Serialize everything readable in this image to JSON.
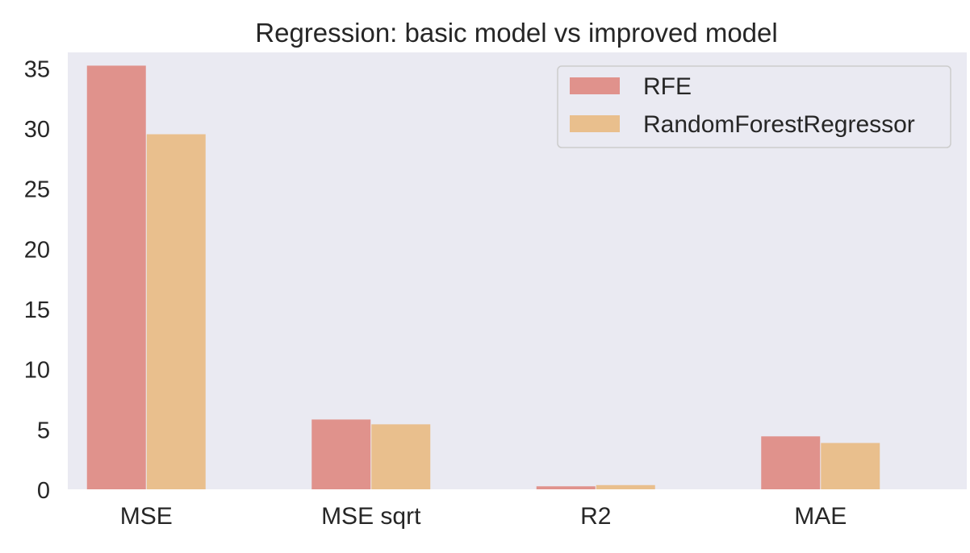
{
  "chart_data": {
    "type": "bar",
    "title": "Regression: basic model vs improved model",
    "xlabel": "",
    "ylabel": "",
    "categories": [
      "MSE",
      "MSE sqrt",
      "R2",
      "MAE"
    ],
    "series": [
      {
        "name": "RFE",
        "values": [
          35.2,
          5.8,
          0.25,
          4.4
        ],
        "color": "#e0928c"
      },
      {
        "name": "RandomForestRegressor",
        "values": [
          29.5,
          5.4,
          0.35,
          3.85
        ],
        "color": "#e9bf8d"
      }
    ],
    "ylim": [
      0,
      36.3
    ],
    "yticks": [
      0,
      5,
      10,
      15,
      20,
      25,
      30,
      35
    ],
    "grid": false,
    "legend_position": "upper right",
    "plot_background": "#eaeaf2"
  }
}
